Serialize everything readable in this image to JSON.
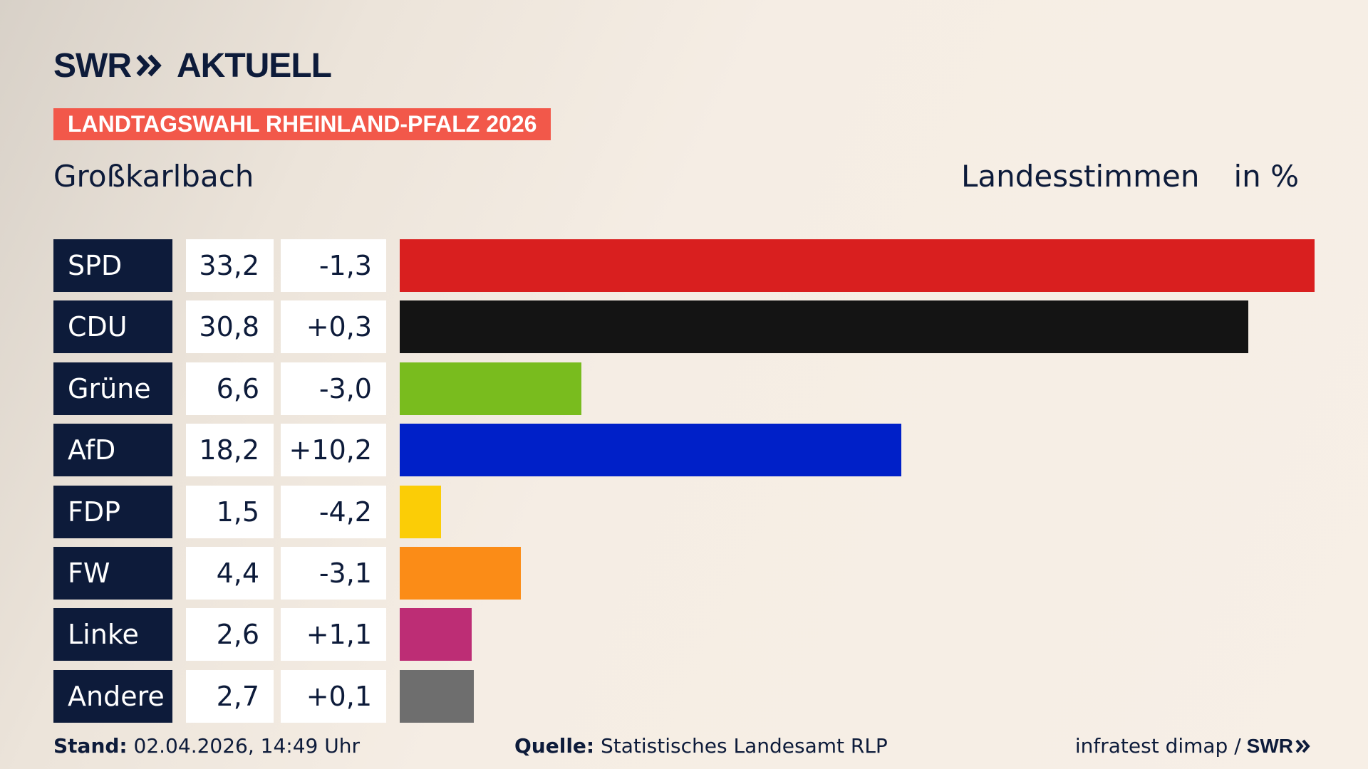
{
  "brand": {
    "logo_left": "SWR",
    "logo_right": "AKTUELL"
  },
  "badge": "LANDTAGSWAHL RHEINLAND-PFALZ 2026",
  "place": "Großkarlbach",
  "header": {
    "measure": "Landesstimmen",
    "unit": "in %"
  },
  "chart_data": {
    "type": "bar",
    "orientation": "horizontal",
    "categories": [
      "SPD",
      "CDU",
      "Grüne",
      "AfD",
      "FDP",
      "FW",
      "Linke",
      "Andere"
    ],
    "values": [
      33.2,
      30.8,
      6.6,
      18.2,
      1.5,
      4.4,
      2.6,
      2.7
    ],
    "value_labels": [
      "33,2",
      "30,8",
      "6,6",
      "18,2",
      "1,5",
      "4,4",
      "2,6",
      "2,7"
    ],
    "change_labels": [
      "-1,3",
      "+0,3",
      "-3,0",
      "+10,2",
      "-4,2",
      "-3,1",
      "+1,1",
      "+0,1"
    ],
    "changes": [
      -1.3,
      0.3,
      -3.0,
      10.2,
      -4.2,
      -3.1,
      1.1,
      0.1
    ],
    "colors": [
      "#d91f1f",
      "#141414",
      "#79bc1e",
      "#0020c8",
      "#fbcd06",
      "#fb8c17",
      "#bd2d75",
      "#6e6e6e"
    ],
    "xlim": [
      0,
      33.2
    ],
    "grid": false,
    "legend": "none"
  },
  "footer": {
    "stand_label": "Stand:",
    "stand_value": "02.04.2026, 14:49 Uhr",
    "quelle_label": "Quelle:",
    "quelle_value": "Statistisches Landesamt RLP",
    "credit": "infratest dimap /",
    "credit_logo": "SWR"
  }
}
